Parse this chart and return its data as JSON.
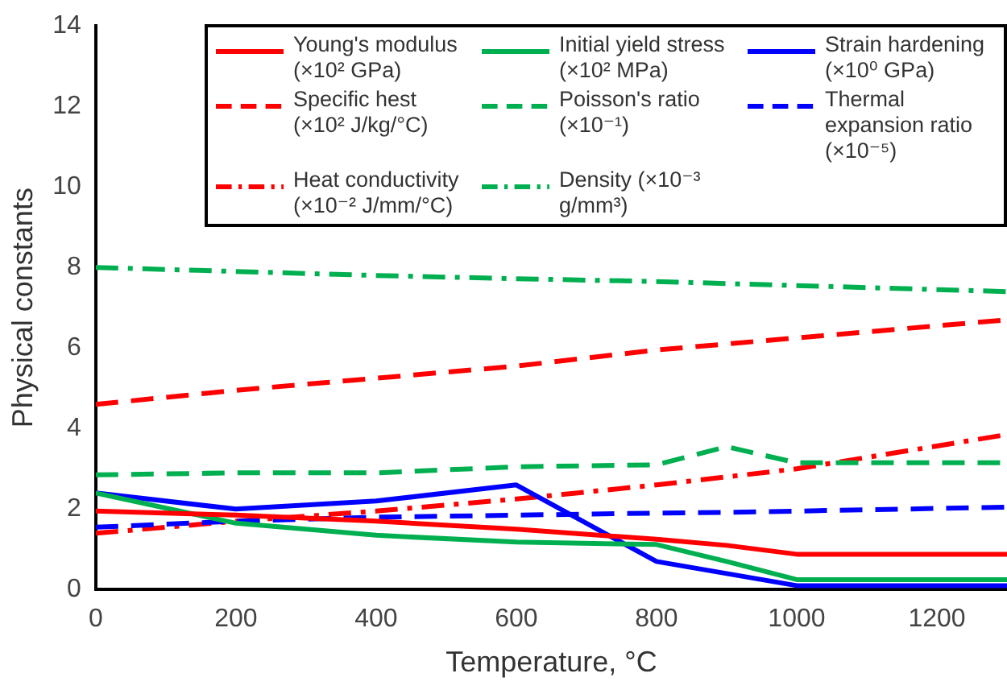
{
  "chart_data": {
    "type": "line",
    "xlabel": "Temperature, °C",
    "ylabel": "Physical constants",
    "x": [
      0,
      200,
      400,
      600,
      800,
      900,
      1000,
      1300
    ],
    "xlim": [
      0,
      1300
    ],
    "xticks": [
      0,
      200,
      400,
      600,
      800,
      1000,
      1200
    ],
    "ylim": [
      0,
      14
    ],
    "yticks": [
      0,
      2,
      4,
      6,
      8,
      10,
      12,
      14
    ],
    "grid": false,
    "legend": "top right",
    "marker": "none",
    "series": [
      {
        "name": "Young's modulus (×10² GPa)",
        "color": "#ff0000",
        "line_style": "solid",
        "values": [
          1.95,
          1.85,
          1.7,
          1.5,
          1.25,
          1.1,
          0.88,
          0.88
        ]
      },
      {
        "name": "Initial yield stress (×10² MPa)",
        "color": "#00b050",
        "line_style": "solid",
        "values": [
          2.4,
          1.65,
          1.35,
          1.18,
          1.12,
          0.7,
          0.25,
          0.25
        ]
      },
      {
        "name": "Strain hardening (×10⁰ GPa)",
        "color": "#0000ff",
        "line_style": "solid",
        "values": [
          2.4,
          2.0,
          2.2,
          2.6,
          0.7,
          0.4,
          0.1,
          0.1
        ]
      },
      {
        "name": "Specific hest (×10² J/kg/°C)",
        "color": "#ff0000",
        "line_style": "dashed",
        "values": [
          4.6,
          4.95,
          5.25,
          5.55,
          5.95,
          6.1,
          6.25,
          6.7
        ]
      },
      {
        "name": "Poisson's ratio (×10⁻¹)",
        "color": "#00b050",
        "line_style": "dashed",
        "values": [
          2.85,
          2.9,
          2.9,
          3.05,
          3.1,
          3.55,
          3.15,
          3.15
        ]
      },
      {
        "name": "Thermal expansion ratio (×10⁻⁵)",
        "color": "#0000ff",
        "line_style": "dashed",
        "values": [
          1.55,
          1.7,
          1.8,
          1.85,
          1.9,
          1.92,
          1.95,
          2.05
        ]
      },
      {
        "name": "Heat conductivity (×10⁻² J/mm/°C)",
        "color": "#ff0000",
        "line_style": "dashdot",
        "values": [
          1.4,
          1.7,
          1.95,
          2.25,
          2.6,
          2.8,
          3.0,
          3.85
        ]
      },
      {
        "name": "Density (×10⁻³ g/mm³)",
        "color": "#00b050",
        "line_style": "dashdot",
        "values": [
          8.0,
          7.9,
          7.8,
          7.72,
          7.65,
          7.6,
          7.55,
          7.4
        ]
      }
    ]
  }
}
